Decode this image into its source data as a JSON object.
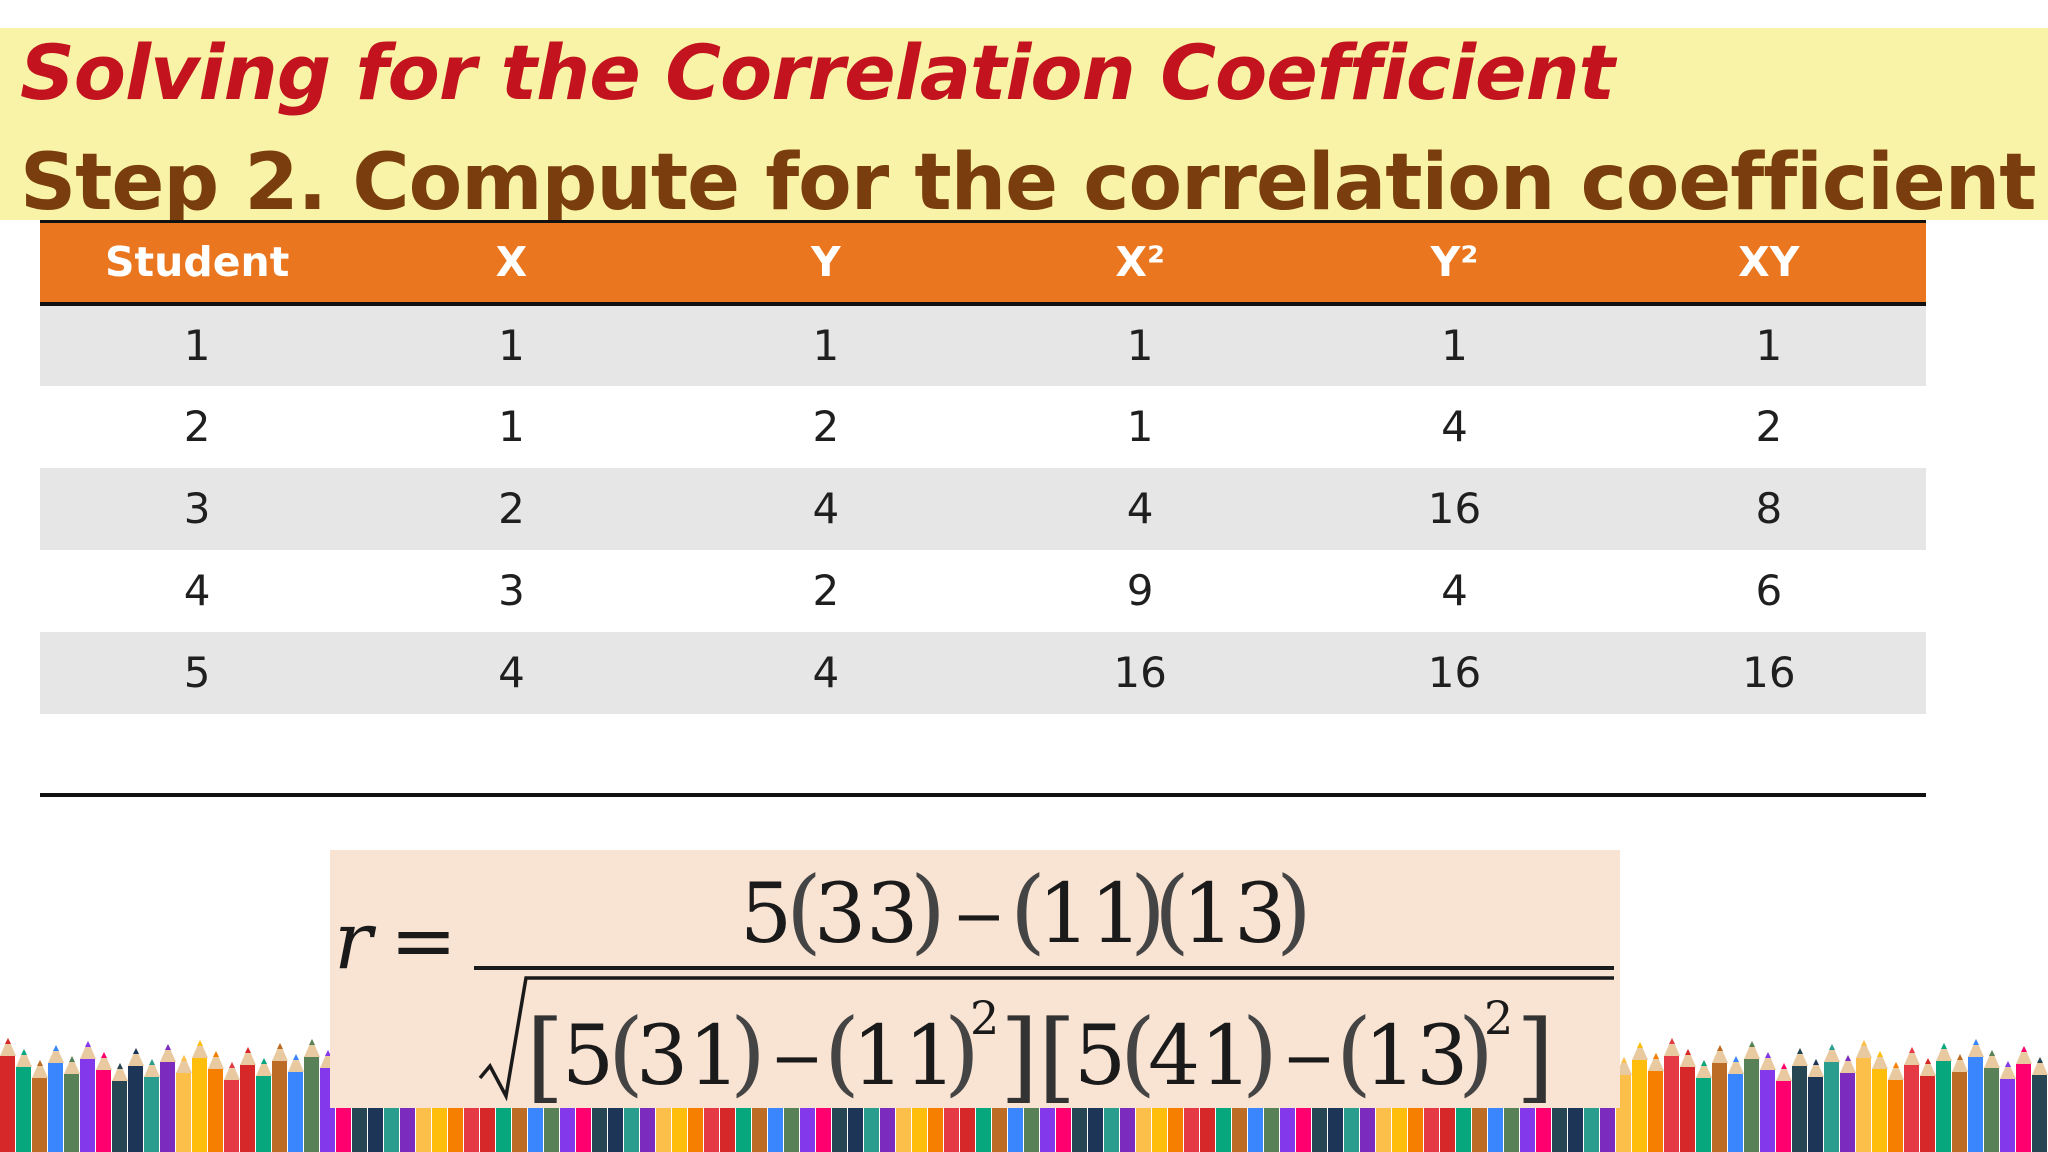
{
  "slide": {
    "title": "Solving for the Correlation Coefficient",
    "subtitle": "Step 2. Compute for the correlation coefficient"
  },
  "table": {
    "headers": [
      "Student",
      "X",
      "Y",
      "X²",
      "Y²",
      "XY"
    ],
    "rows": [
      [
        "1",
        "1",
        "1",
        "1",
        "1",
        "1"
      ],
      [
        "2",
        "1",
        "2",
        "1",
        "4",
        "2"
      ],
      [
        "3",
        "2",
        "4",
        "4",
        "16",
        "8"
      ],
      [
        "4",
        "3",
        "2",
        "9",
        "4",
        "6"
      ],
      [
        "5",
        "4",
        "4",
        "16",
        "16",
        "16"
      ]
    ]
  },
  "formula": {
    "lhs": "r",
    "equals": "=",
    "numerator": {
      "n": "5",
      "sum_xy": "33",
      "minus": "−",
      "sum_x": "11",
      "sum_y": "13"
    },
    "denominator": {
      "n1": "5",
      "sum_x2": "31",
      "minus1": "−",
      "sum_x": "11",
      "exp1": "2",
      "n2": "5",
      "sum_y2": "41",
      "minus2": "−",
      "sum_y": "13",
      "exp2": "2"
    }
  },
  "colors": {
    "title_red": "#c2131f",
    "subtitle_brown": "#7a3d0d",
    "title_band": "#f8f3a6",
    "header_orange": "#ea7720",
    "row_gray": "#e6e6e6",
    "formula_bg": "#f9e3d3"
  },
  "decorations": {
    "footer_icon": "colored-pencils-border-icon"
  }
}
